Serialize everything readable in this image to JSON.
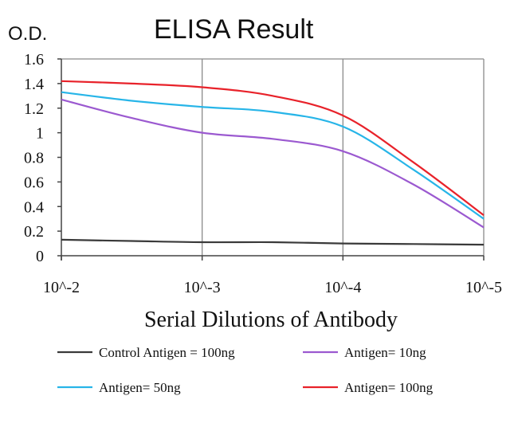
{
  "chart_data": {
    "type": "line",
    "title": "ELISA Result",
    "ylabel": "O.D.",
    "xlabel": "Serial Dilutions of Antibody",
    "categories": [
      "10^-2",
      "10^-3",
      "10^-4",
      "10^-5"
    ],
    "ylim": [
      0,
      1.6
    ],
    "yticks": [
      "1.6",
      "1.4",
      "1.2",
      "1",
      "0.8",
      "0.6",
      "0.4",
      "0.2",
      "0"
    ],
    "grid": "vertical",
    "legend_position": "bottom",
    "series": [
      {
        "name": "Control Antigen = 100ng",
        "color": "#3a3a3a",
        "x": [
          0,
          0.5,
          1,
          1.5,
          2,
          2.5,
          3
        ],
        "values": [
          0.13,
          0.12,
          0.11,
          0.11,
          0.1,
          0.095,
          0.09
        ]
      },
      {
        "name": "Antigen= 10ng",
        "color": "#9b59d0",
        "x": [
          0,
          0.5,
          1,
          1.5,
          2,
          2.5,
          3
        ],
        "values": [
          1.27,
          1.12,
          1.0,
          0.95,
          0.85,
          0.58,
          0.23
        ]
      },
      {
        "name": "Antigen= 50ng",
        "color": "#27b5e8",
        "x": [
          0,
          0.5,
          1,
          1.5,
          2,
          2.5,
          3
        ],
        "values": [
          1.33,
          1.26,
          1.21,
          1.17,
          1.05,
          0.7,
          0.3
        ]
      },
      {
        "name": "Antigen= 100ng",
        "color": "#e8222a",
        "x": [
          0,
          0.5,
          1,
          1.5,
          2,
          2.5,
          3
        ],
        "values": [
          1.42,
          1.4,
          1.37,
          1.3,
          1.14,
          0.76,
          0.33
        ]
      }
    ]
  }
}
